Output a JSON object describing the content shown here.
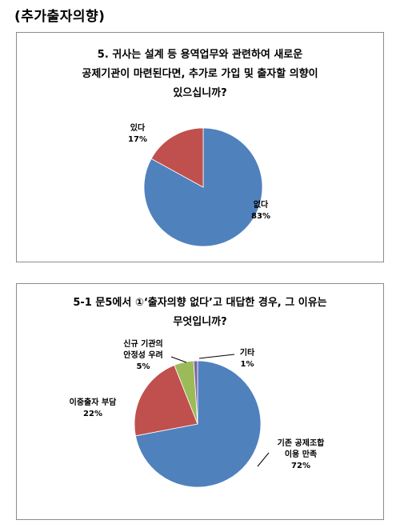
{
  "heading": "(추가출자의향)",
  "chart_data": [
    {
      "type": "pie",
      "title_lines": [
        "5. 귀사는 설계 등 용역업무와 관련하여 새로운",
        "공제기관이 마련된다면, 추가로 가입 및 출자할 의향이",
        "있으십니까?"
      ],
      "slices": [
        {
          "label_lines": [
            "없다"
          ],
          "value": 83,
          "value_label": "83%",
          "color": "#4f81bd"
        },
        {
          "label_lines": [
            "있다"
          ],
          "value": 17,
          "value_label": "17%",
          "color": "#c0504d"
        }
      ]
    },
    {
      "type": "pie",
      "title_lines": [
        "5-1 문5에서 ①‘출자의향 없다’고 대답한 경우, 그 이유는",
        "무엇입니까?"
      ],
      "slices": [
        {
          "label_lines": [
            "기존 공제조합",
            "이용 만족"
          ],
          "value": 72,
          "value_label": "72%",
          "color": "#4f81bd"
        },
        {
          "label_lines": [
            "이중출자 부담"
          ],
          "value": 22,
          "value_label": "22%",
          "color": "#c0504d"
        },
        {
          "label_lines": [
            "신규 기관의",
            "안정성 우려"
          ],
          "value": 5,
          "value_label": "5%",
          "color": "#9bbb59"
        },
        {
          "label_lines": [
            "기타"
          ],
          "value": 1,
          "value_label": "1%",
          "color": "#8064a2"
        }
      ]
    }
  ]
}
